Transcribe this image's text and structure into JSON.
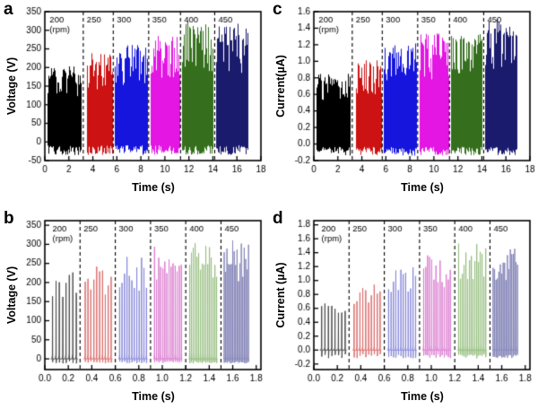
{
  "chart_data": [
    {
      "id": "a",
      "panel_letter": "a",
      "type": "line",
      "mode": "dense",
      "title": "",
      "xlabel": "Time (s)",
      "ylabel": "Voltage (V)",
      "xlim": [
        0,
        18
      ],
      "ylim": [
        -50,
        350
      ],
      "xticks": [
        0,
        2,
        4,
        6,
        8,
        10,
        12,
        14,
        16,
        18
      ],
      "xtick_labels": [
        "0",
        "2",
        "4",
        "6",
        "8",
        "10",
        "12",
        "14",
        "16",
        "18"
      ],
      "yticks": [
        -50,
        0,
        50,
        100,
        150,
        200,
        250,
        300,
        350
      ],
      "ytick_labels": [
        "-50",
        "0",
        "50",
        "100",
        "150",
        "200",
        "250",
        "300",
        "350"
      ],
      "grid": false,
      "legend": "none",
      "rpm_note": "(rpm)",
      "separators": [
        3.2,
        5.7,
        8.65,
        11.3,
        14.15
      ],
      "segments": [
        {
          "rpm": "200",
          "t0": 0.25,
          "t1": 3.0,
          "peak": 205,
          "floor": -35,
          "color": "#000000"
        },
        {
          "rpm": "250",
          "t0": 3.5,
          "t1": 5.6,
          "peak": 240,
          "floor": -35,
          "color": "#cc1212"
        },
        {
          "rpm": "300",
          "t0": 5.85,
          "t1": 8.5,
          "peak": 263,
          "floor": -35,
          "color": "#1515dd"
        },
        {
          "rpm": "350",
          "t0": 8.8,
          "t1": 11.2,
          "peak": 293,
          "floor": -35,
          "color": "#e316e3"
        },
        {
          "rpm": "400",
          "t0": 11.45,
          "t1": 14.0,
          "peak": 325,
          "floor": -35,
          "color": "#356f1e"
        },
        {
          "rpm": "450",
          "t0": 14.3,
          "t1": 16.9,
          "peak": 318,
          "floor": -35,
          "color": "#1b1b6e"
        }
      ]
    },
    {
      "id": "c",
      "panel_letter": "c",
      "type": "line",
      "mode": "dense",
      "title": "",
      "xlabel": "Time (s)",
      "ylabel": "Current(µA)",
      "xlim": [
        0,
        18
      ],
      "ylim": [
        -0.2,
        1.6
      ],
      "xticks": [
        0,
        2,
        4,
        6,
        8,
        10,
        12,
        14,
        16,
        18
      ],
      "xtick_labels": [
        "0",
        "2",
        "4",
        "6",
        "8",
        "10",
        "12",
        "14",
        "16",
        "18"
      ],
      "yticks": [
        -0.2,
        0.0,
        0.2,
        0.4,
        0.6,
        0.8,
        1.0,
        1.2,
        1.4,
        1.6
      ],
      "ytick_labels": [
        "-0.2",
        "0.0",
        "0.2",
        "0.4",
        "0.6",
        "0.8",
        "1.0",
        "1.2",
        "1.4",
        "1.6"
      ],
      "grid": false,
      "legend": "none",
      "rpm_note": "(rpm)",
      "separators": [
        3.2,
        5.7,
        8.65,
        11.3,
        14.15
      ],
      "segments": [
        {
          "rpm": "200",
          "t0": 0.25,
          "t1": 3.0,
          "peak": 0.85,
          "floor": -0.14,
          "color": "#000000"
        },
        {
          "rpm": "250",
          "t0": 3.5,
          "t1": 5.6,
          "peak": 1.02,
          "floor": -0.14,
          "color": "#cc1212"
        },
        {
          "rpm": "300",
          "t0": 5.85,
          "t1": 8.5,
          "peak": 1.22,
          "floor": -0.14,
          "color": "#1515dd"
        },
        {
          "rpm": "350",
          "t0": 8.8,
          "t1": 11.2,
          "peak": 1.35,
          "floor": -0.14,
          "color": "#e316e3"
        },
        {
          "rpm": "400",
          "t0": 11.45,
          "t1": 14.0,
          "peak": 1.44,
          "floor": -0.14,
          "color": "#356f1e"
        },
        {
          "rpm": "450",
          "t0": 14.3,
          "t1": 16.9,
          "peak": 1.52,
          "floor": -0.14,
          "color": "#1b1b6e"
        }
      ]
    },
    {
      "id": "b",
      "panel_letter": "b",
      "type": "line",
      "mode": "spikes",
      "title": "",
      "xlabel": "Time (s)",
      "ylabel": "Voltage (V)",
      "xlim": [
        0,
        1.84
      ],
      "ylim": [
        -28,
        362
      ],
      "xticks": [
        0.0,
        0.2,
        0.4,
        0.6,
        0.8,
        1.0,
        1.2,
        1.4,
        1.6,
        1.8
      ],
      "xtick_labels": [
        "0.0",
        "0.2",
        "0.4",
        "0.6",
        "0.8",
        "1.0",
        "1.2",
        "1.4",
        "1.6",
        "1.8"
      ],
      "yticks": [
        0,
        50,
        100,
        150,
        200,
        250,
        300,
        350
      ],
      "ytick_labels": [
        "0",
        "50",
        "100",
        "150",
        "200",
        "250",
        "300",
        "350"
      ],
      "grid": false,
      "legend": "none",
      "rpm_note": "(rpm)",
      "separators": [
        0.3,
        0.6,
        0.9,
        1.2,
        1.5
      ],
      "segments": [
        {
          "rpm": "200",
          "t0": 0.05,
          "t1": 0.28,
          "peak": 232,
          "spikes": 8,
          "color": "#474747"
        },
        {
          "rpm": "250",
          "t0": 0.33,
          "t1": 0.575,
          "peak": 242,
          "spikes": 10,
          "color": "#db6a6a"
        },
        {
          "rpm": "300",
          "t0": 0.625,
          "t1": 0.875,
          "peak": 268,
          "spikes": 12,
          "color": "#8585db"
        },
        {
          "rpm": "350",
          "t0": 0.925,
          "t1": 1.17,
          "peak": 298,
          "spikes": 14,
          "color": "#db7ad0"
        },
        {
          "rpm": "400",
          "t0": 1.225,
          "t1": 1.47,
          "peak": 322,
          "spikes": 16,
          "color": "#93bd7c"
        },
        {
          "rpm": "450",
          "t0": 1.52,
          "t1": 1.74,
          "peak": 312,
          "spikes": 18,
          "color": "#8787ba"
        }
      ]
    },
    {
      "id": "d",
      "panel_letter": "d",
      "type": "line",
      "mode": "spikes",
      "title": "",
      "xlabel": "Time (s)",
      "ylabel": "Current (µA)",
      "xlim": [
        0,
        1.84
      ],
      "ylim": [
        -0.28,
        1.86
      ],
      "xticks": [
        0.0,
        0.2,
        0.4,
        0.6,
        0.8,
        1.0,
        1.2,
        1.4,
        1.6,
        1.8
      ],
      "xtick_labels": [
        "0.0",
        "0.2",
        "0.4",
        "0.6",
        "0.8",
        "1.0",
        "1.2",
        "1.4",
        "1.6",
        "1.8"
      ],
      "yticks": [
        -0.2,
        0.0,
        0.2,
        0.4,
        0.6,
        0.8,
        1.0,
        1.2,
        1.4,
        1.6,
        1.8
      ],
      "ytick_labels": [
        "-0.2",
        "0.0",
        "0.2",
        "0.4",
        "0.6",
        "0.8",
        "1.0",
        "1.2",
        "1.4",
        "1.6",
        "1.8"
      ],
      "grid": false,
      "legend": "none",
      "rpm_note": "(rpm)",
      "separators": [
        0.3,
        0.6,
        0.9,
        1.2,
        1.5
      ],
      "segments": [
        {
          "rpm": "200",
          "t0": 0.05,
          "t1": 0.28,
          "peak": 0.8,
          "spikes": 8,
          "color": "#474747"
        },
        {
          "rpm": "250",
          "t0": 0.33,
          "t1": 0.575,
          "peak": 1.0,
          "spikes": 10,
          "color": "#db6a6a"
        },
        {
          "rpm": "300",
          "t0": 0.625,
          "t1": 0.875,
          "peak": 1.2,
          "spikes": 12,
          "color": "#8585db"
        },
        {
          "rpm": "350",
          "t0": 0.925,
          "t1": 1.17,
          "peak": 1.38,
          "spikes": 14,
          "color": "#db7ad0"
        },
        {
          "rpm": "400",
          "t0": 1.225,
          "t1": 1.47,
          "peak": 1.55,
          "spikes": 16,
          "color": "#93bd7c"
        },
        {
          "rpm": "450",
          "t0": 1.52,
          "t1": 1.74,
          "peak": 1.5,
          "spikes": 18,
          "color": "#8787ba"
        }
      ]
    }
  ]
}
